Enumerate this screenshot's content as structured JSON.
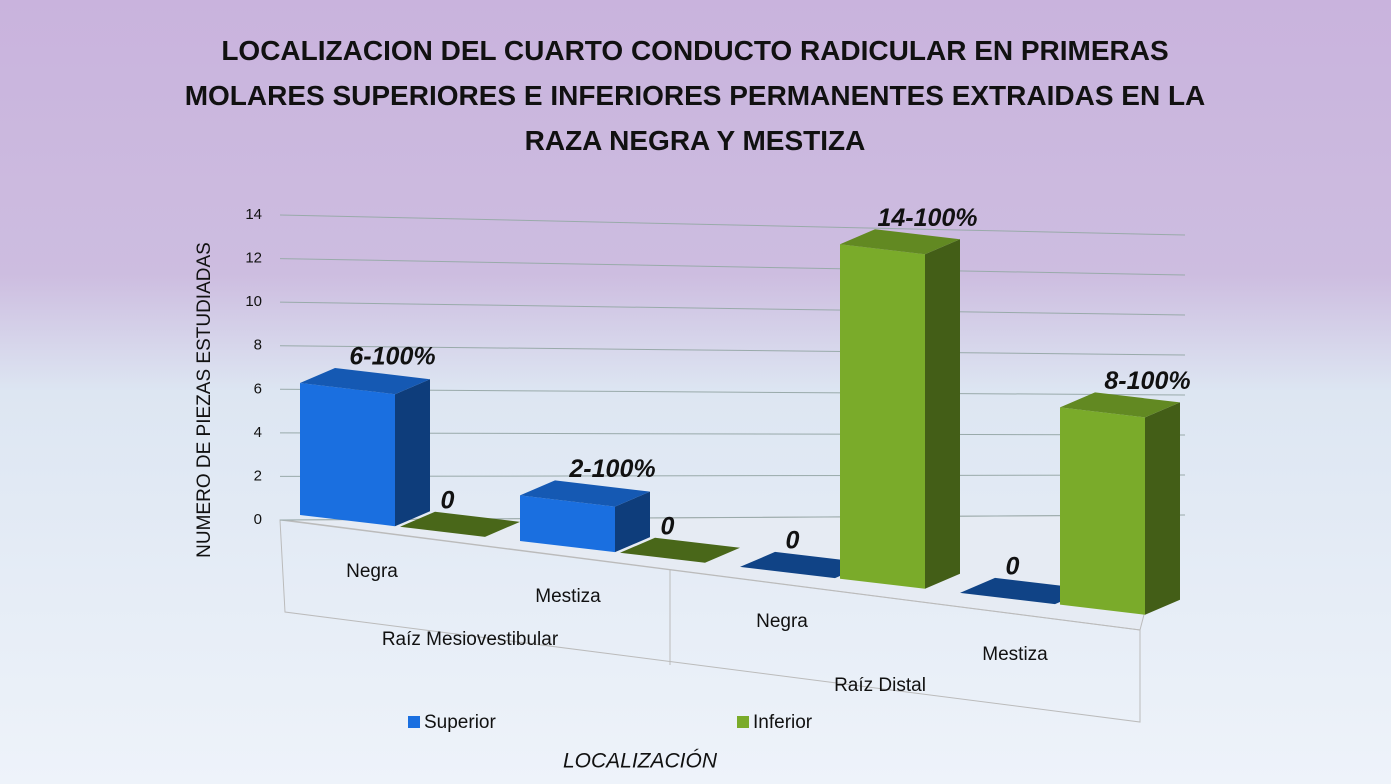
{
  "chart_data": {
    "type": "bar3d",
    "title": "LOCALIZACION DEL CUARTO CONDUCTO RADICULAR EN PRIMERAS MOLARES SUPERIORES E INFERIORES PERMANENTES EXTRAIDAS EN LA RAZA NEGRA Y MESTIZA",
    "y_label": "NUMERO DE PIEZAS ESTUDIADAS",
    "x_label": "LOCALIZACIÓN",
    "categories": [
      "Negra",
      "Mestiza",
      "Negra",
      "Mestiza"
    ],
    "groups": [
      "Raíz Mesiovestibular",
      "Raíz Distal"
    ],
    "series": [
      {
        "name": "Superior",
        "color": "#1a6fe0",
        "values": [
          6,
          2,
          0,
          0
        ],
        "value_labels": [
          "6-100%",
          "2-100%",
          "0",
          "0"
        ]
      },
      {
        "name": "Inferior",
        "color": "#7aab2a",
        "values": [
          0,
          0,
          14,
          8
        ],
        "value_labels": [
          "0",
          "0",
          "14-100%",
          "8-100%"
        ]
      }
    ],
    "ylim": [
      0,
      14
    ],
    "yticks": [
      0,
      2,
      4,
      6,
      8,
      10,
      12,
      14
    ],
    "grid": true
  }
}
